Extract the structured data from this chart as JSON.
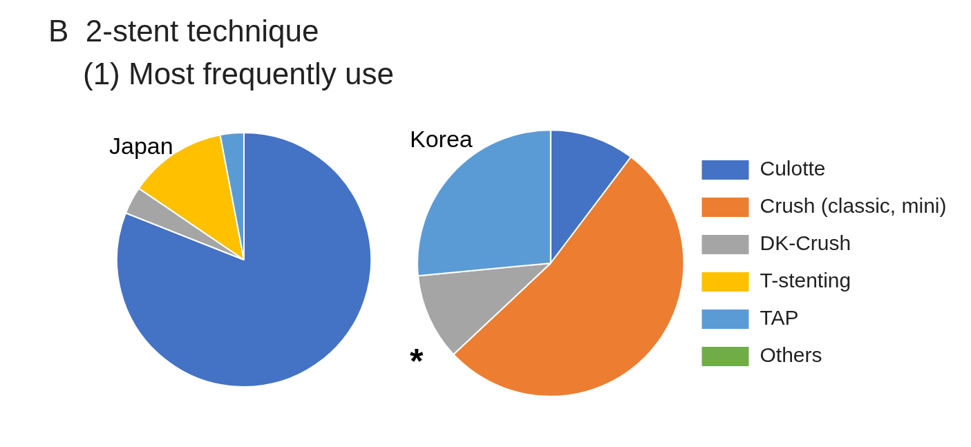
{
  "chart_data": {
    "type": "pie",
    "title": "B  2-stent technique",
    "subtitle": "(1) Most frequently use",
    "categories": [
      "Culotte",
      "Crush (classic, mini)",
      "DK-Crush",
      "T-stenting",
      "TAP",
      "Others"
    ],
    "colors": [
      "#4472c4",
      "#ed7d31",
      "#a5a5a5",
      "#ffc000",
      "#5b9bd5",
      "#70ad47"
    ],
    "series": [
      {
        "name": "Japan",
        "values": [
          81,
          0,
          3.5,
          12.5,
          3,
          0
        ]
      },
      {
        "name": "Korea",
        "values": [
          10.3,
          52.7,
          10.5,
          0,
          26.5,
          0
        ]
      }
    ],
    "annotations": [
      "*"
    ],
    "legend": "right"
  }
}
